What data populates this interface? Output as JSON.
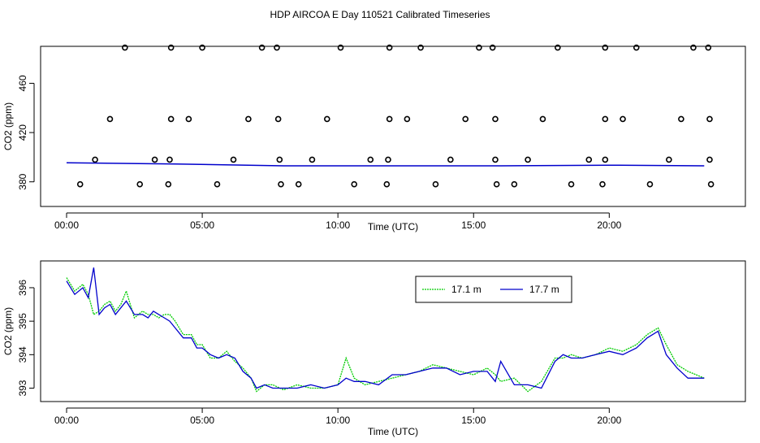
{
  "page_title": "HDP AIRCOA E  Day 110521  Calibrated Timeseries",
  "colors": {
    "series_a": "#00cc00",
    "series_b": "#0000cc",
    "axes": "#000000",
    "points": "#000000"
  },
  "chart_data": [
    {
      "type": "scatter",
      "title": "",
      "xlabel": "Time (UTC)",
      "ylabel": "CO2 (ppm)",
      "xlim": [
        0,
        24
      ],
      "ylim": [
        360,
        490
      ],
      "x_ticks": [
        0,
        5,
        10,
        15,
        20
      ],
      "x_tick_labels": [
        "00:00",
        "05:00",
        "10:00",
        "15:00",
        "20:00"
      ],
      "y_ticks": [
        380,
        420,
        460
      ],
      "y_tick_labels": [
        "380",
        "420",
        "460"
      ],
      "grid": false,
      "points_x": [
        2.15,
        3.85,
        5.0,
        7.2,
        7.75,
        10.1,
        11.9,
        13.05,
        15.2,
        15.7,
        18.1,
        19.85,
        21.0,
        23.1,
        23.65,
        1.6,
        3.85,
        4.5,
        6.7,
        7.8,
        9.6,
        11.9,
        12.55,
        14.7,
        15.8,
        17.55,
        19.85,
        20.5,
        22.65,
        23.7,
        1.05,
        3.25,
        3.8,
        6.15,
        7.85,
        9.05,
        11.2,
        11.85,
        14.15,
        15.8,
        17.0,
        19.25,
        19.85,
        22.2,
        23.7,
        0.5,
        2.7,
        3.75,
        5.55,
        7.9,
        8.55,
        10.6,
        11.8,
        13.6,
        15.85,
        16.5,
        18.6,
        19.75,
        21.5,
        23.75
      ],
      "points_y": [
        489,
        489,
        489,
        489,
        489,
        489,
        489,
        489,
        489,
        489,
        489,
        489,
        489,
        489,
        489,
        431,
        431,
        431,
        431,
        431,
        431,
        431,
        431,
        431,
        431,
        431,
        431,
        431,
        431,
        431,
        398,
        398,
        398,
        398,
        398,
        398,
        398,
        398,
        398,
        398,
        398,
        398,
        398,
        398,
        398,
        378,
        378,
        378,
        378,
        378,
        378,
        378,
        378,
        378,
        378,
        378,
        378,
        378,
        378,
        378
      ],
      "series": [
        {
          "x": [
            0,
            4,
            8,
            12,
            16,
            20,
            23.5
          ],
          "values": [
            395.5,
            394.5,
            393,
            393,
            393,
            393.5,
            393
          ]
        }
      ]
    },
    {
      "type": "line",
      "title": "",
      "xlabel": "Time (UTC)",
      "ylabel": "CO2 (ppm)",
      "xlim": [
        0,
        24
      ],
      "ylim": [
        392.6,
        396.8
      ],
      "x_ticks": [
        0,
        5,
        10,
        15,
        20
      ],
      "x_tick_labels": [
        "00:00",
        "05:00",
        "10:00",
        "15:00",
        "20:00"
      ],
      "y_ticks": [
        393,
        394,
        395,
        396
      ],
      "y_tick_labels": [
        "393",
        "394",
        "395",
        "396"
      ],
      "grid": false,
      "legend_position": "top-right",
      "x": [
        0,
        0.3,
        0.6,
        0.8,
        1.0,
        1.2,
        1.4,
        1.6,
        1.8,
        2.0,
        2.2,
        2.5,
        2.8,
        3.0,
        3.2,
        3.4,
        3.6,
        3.8,
        4.0,
        4.3,
        4.6,
        4.8,
        5.0,
        5.3,
        5.6,
        5.9,
        6.2,
        6.5,
        6.8,
        7.0,
        7.3,
        7.6,
        8.0,
        8.5,
        9.0,
        9.5,
        10.0,
        10.3,
        10.6,
        11.0,
        11.5,
        12.0,
        12.5,
        13.0,
        13.5,
        14.0,
        14.5,
        15.0,
        15.5,
        15.8,
        16.0,
        16.5,
        17.0,
        17.5,
        18.0,
        18.3,
        18.6,
        19.0,
        19.5,
        20.0,
        20.5,
        21.0,
        21.4,
        21.8,
        22.1,
        22.5,
        22.9,
        23.2,
        23.5
      ],
      "series": [
        {
          "name": "17.1 m",
          "values": [
            396.3,
            395.9,
            396.1,
            395.8,
            395.2,
            395.3,
            395.5,
            395.6,
            395.3,
            395.5,
            395.9,
            395.1,
            395.3,
            395.2,
            395.2,
            395.1,
            395.2,
            395.2,
            395.0,
            394.6,
            394.6,
            394.3,
            394.3,
            393.9,
            393.9,
            394.1,
            393.8,
            393.6,
            393.3,
            392.9,
            393.1,
            393.1,
            392.95,
            393.1,
            393.0,
            393.0,
            393.1,
            393.9,
            393.3,
            393.1,
            393.2,
            393.3,
            393.4,
            393.5,
            393.7,
            393.6,
            393.5,
            393.4,
            393.6,
            393.4,
            393.2,
            393.3,
            392.9,
            393.2,
            393.9,
            393.9,
            394.0,
            393.9,
            394.0,
            394.2,
            394.1,
            394.3,
            394.6,
            394.8,
            394.3,
            393.7,
            393.5,
            393.4,
            393.3
          ]
        },
        {
          "name": "17.7 m",
          "values": [
            396.2,
            395.8,
            396.0,
            395.7,
            396.6,
            395.2,
            395.4,
            395.5,
            395.2,
            395.4,
            395.6,
            395.2,
            395.2,
            395.1,
            395.3,
            395.2,
            395.1,
            395.0,
            394.8,
            394.5,
            394.5,
            394.2,
            394.2,
            394.0,
            393.9,
            394.0,
            393.9,
            393.5,
            393.3,
            393.0,
            393.1,
            393.0,
            393.0,
            393.0,
            393.1,
            393.0,
            393.1,
            393.3,
            393.2,
            393.2,
            393.1,
            393.4,
            393.4,
            393.5,
            393.6,
            393.6,
            393.4,
            393.5,
            393.5,
            393.2,
            393.8,
            393.1,
            393.1,
            393.0,
            393.8,
            394.0,
            393.9,
            393.9,
            394.0,
            394.1,
            394.0,
            394.2,
            394.5,
            394.7,
            394.0,
            393.6,
            393.3,
            393.3,
            393.3
          ]
        }
      ]
    }
  ]
}
